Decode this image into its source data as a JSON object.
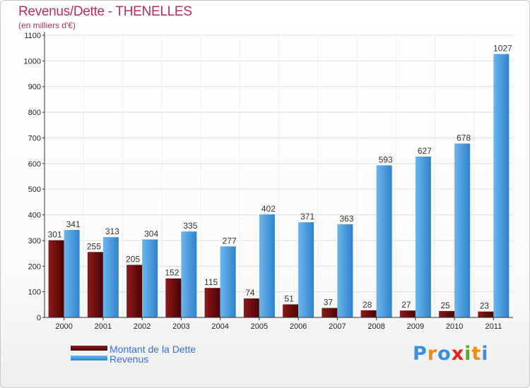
{
  "title": "Revenus/Dette - THENELLES",
  "subtitle": "(en milliers d'€)",
  "brand": {
    "text": "Proxiti",
    "letters": [
      "P",
      "r",
      "o",
      "x",
      "i",
      "t",
      "i"
    ],
    "colors": [
      "#3c8fe0",
      "#f08a1c",
      "#3c8fe0",
      "#e7231f",
      "#5aaa2a",
      "#f08a1c",
      "#3c8fe0"
    ]
  },
  "chart_data": {
    "type": "bar",
    "categories": [
      "2000",
      "2001",
      "2002",
      "2003",
      "2004",
      "2005",
      "2006",
      "2007",
      "2008",
      "2009",
      "2010",
      "2011"
    ],
    "series": [
      {
        "name": "Montant de la Dette",
        "color": "#6b0a0a",
        "values": [
          301,
          255,
          205,
          152,
          115,
          74,
          51,
          37,
          28,
          27,
          25,
          23
        ]
      },
      {
        "name": "Revenus",
        "color": "#4a9de0",
        "values": [
          341,
          313,
          304,
          335,
          277,
          402,
          371,
          363,
          593,
          627,
          678,
          1027
        ]
      }
    ],
    "ylim": [
      0,
      1100
    ],
    "yticks": [
      0,
      100,
      200,
      300,
      400,
      500,
      600,
      700,
      800,
      900,
      1000,
      1100
    ],
    "grid": true,
    "legend": "bottom-left"
  }
}
